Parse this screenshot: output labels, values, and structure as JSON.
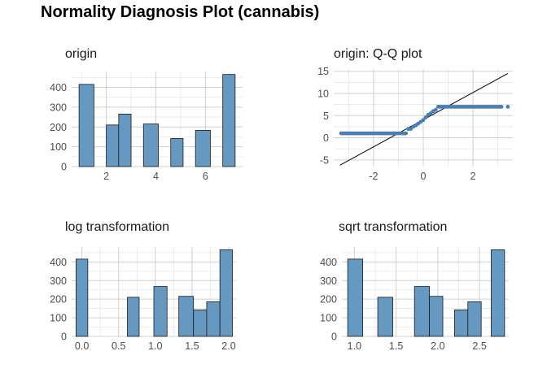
{
  "title": "Normality Diagnosis Plot (cannabis)",
  "fill_color": "#6699c2",
  "point_color": "#4a7eb3",
  "chart_data": [
    {
      "type": "bar",
      "title": "origin",
      "bins": [
        {
          "x0": 0.9,
          "x1": 1.5,
          "count": 415
        },
        {
          "x0": 2.0,
          "x1": 2.5,
          "count": 210
        },
        {
          "x0": 2.5,
          "x1": 3.0,
          "count": 265
        },
        {
          "x0": 3.5,
          "x1": 4.1,
          "count": 215
        },
        {
          "x0": 4.6,
          "x1": 5.1,
          "count": 142
        },
        {
          "x0": 5.6,
          "x1": 6.2,
          "count": 183
        },
        {
          "x0": 6.7,
          "x1": 7.2,
          "count": 465
        }
      ],
      "xlim": [
        0.6,
        7.5
      ],
      "ylim": [
        0,
        480
      ],
      "xticks": [
        2,
        4,
        6
      ],
      "yticks": [
        0,
        100,
        200,
        300,
        400
      ]
    },
    {
      "type": "scatter",
      "title": "origin: Q-Q plot",
      "points": [
        [
          -3.3,
          1
        ],
        [
          -3.05,
          1
        ],
        [
          -1.2,
          1
        ],
        [
          -0.7,
          1
        ],
        [
          -0.6,
          2
        ],
        [
          -0.5,
          2
        ],
        [
          -0.4,
          2.5
        ],
        [
          -0.3,
          2.8
        ],
        [
          -0.2,
          3.2
        ],
        [
          -0.1,
          3.6
        ],
        [
          0.0,
          4
        ],
        [
          0.1,
          4.6
        ],
        [
          0.2,
          5.2
        ],
        [
          0.3,
          5.5
        ],
        [
          0.4,
          6
        ],
        [
          0.5,
          6.3
        ],
        [
          0.6,
          7
        ],
        [
          3.1,
          7
        ],
        [
          3.4,
          7
        ]
      ],
      "segments": [
        {
          "x0": -3.3,
          "x1": -0.7,
          "y": 1
        },
        {
          "x0": 0.65,
          "x1": 3.15,
          "y": 7
        }
      ],
      "ref_line": [
        [
          -3.35,
          -6.2
        ],
        [
          3.4,
          14.5
        ]
      ],
      "xlim": [
        -3.6,
        3.6
      ],
      "ylim": [
        -6.5,
        15.5
      ],
      "xticks": [
        -2,
        0,
        2
      ],
      "yticks": [
        -5,
        0,
        5,
        10,
        15
      ]
    },
    {
      "type": "bar",
      "title": "log transformation",
      "bins": [
        {
          "x0": -0.08,
          "x1": 0.08,
          "count": 415
        },
        {
          "x0": 0.62,
          "x1": 0.78,
          "count": 210
        },
        {
          "x0": 0.98,
          "x1": 1.16,
          "count": 268
        },
        {
          "x0": 1.32,
          "x1": 1.52,
          "count": 215
        },
        {
          "x0": 1.52,
          "x1": 1.7,
          "count": 142
        },
        {
          "x0": 1.7,
          "x1": 1.88,
          "count": 186
        },
        {
          "x0": 1.88,
          "x1": 2.05,
          "count": 465
        }
      ],
      "xlim": [
        -0.14,
        2.1
      ],
      "ylim": [
        0,
        480
      ],
      "xticks": [
        0.0,
        0.5,
        1.0,
        1.5,
        2.0
      ],
      "ytick_labels": [
        "0",
        "100",
        "200",
        "300",
        "400"
      ],
      "xtick_labels": [
        "0.0",
        "0.5",
        "1.0",
        "1.5",
        "2.0"
      ],
      "yticks": [
        0,
        100,
        200,
        300,
        400
      ]
    },
    {
      "type": "bar",
      "title": "sqrt transformation",
      "bins": [
        {
          "x0": 0.92,
          "x1": 1.1,
          "count": 415
        },
        {
          "x0": 1.28,
          "x1": 1.46,
          "count": 210
        },
        {
          "x0": 1.72,
          "x1": 1.9,
          "count": 268
        },
        {
          "x0": 1.9,
          "x1": 2.06,
          "count": 215
        },
        {
          "x0": 2.2,
          "x1": 2.36,
          "count": 142
        },
        {
          "x0": 2.36,
          "x1": 2.52,
          "count": 186
        },
        {
          "x0": 2.64,
          "x1": 2.8,
          "count": 465
        }
      ],
      "xlim": [
        0.85,
        2.85
      ],
      "ylim": [
        0,
        480
      ],
      "xticks": [
        1.0,
        1.5,
        2.0,
        2.5
      ],
      "xtick_labels": [
        "1.0",
        "1.5",
        "2.0",
        "2.5"
      ],
      "ytick_labels": [
        "0",
        "100",
        "200",
        "300",
        "400"
      ],
      "yticks": [
        0,
        100,
        200,
        300,
        400
      ]
    }
  ]
}
